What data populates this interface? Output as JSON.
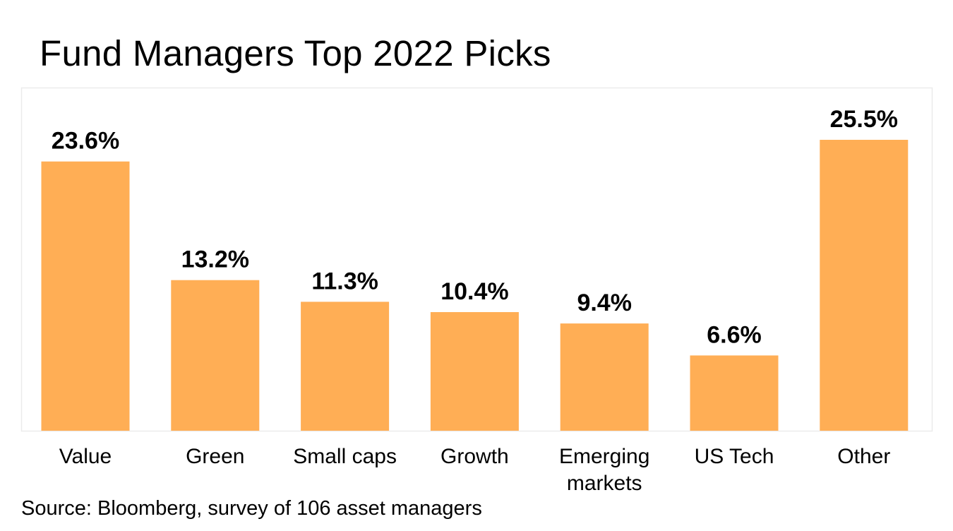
{
  "title": "Fund Managers Top 2022 Picks",
  "source": "Source: Bloomberg, survey of 106 asset managers",
  "colors": {
    "bar": "#FFAE55",
    "plot_border": "#EBEBEB",
    "text": "#000000"
  },
  "chart_data": {
    "type": "bar",
    "title": "Fund Managers Top 2022 Picks",
    "xlabel": "",
    "ylabel": "",
    "categories": [
      "Value",
      "Green",
      "Small caps",
      "Growth",
      "Emerging markets",
      "US Tech",
      "Other"
    ],
    "category_lines": [
      [
        "Value"
      ],
      [
        "Green"
      ],
      [
        "Small caps"
      ],
      [
        "Growth"
      ],
      [
        "Emerging",
        "markets"
      ],
      [
        "US Tech"
      ],
      [
        "Other"
      ]
    ],
    "values": [
      23.6,
      13.2,
      11.3,
      10.4,
      9.4,
      6.6,
      25.5
    ],
    "value_labels": [
      "23.6%",
      "13.2%",
      "11.3%",
      "10.4%",
      "9.4%",
      "6.6%",
      "25.5%"
    ],
    "unit": "%",
    "ylim": [
      0,
      25.5
    ],
    "grid": false,
    "legend": "none"
  }
}
